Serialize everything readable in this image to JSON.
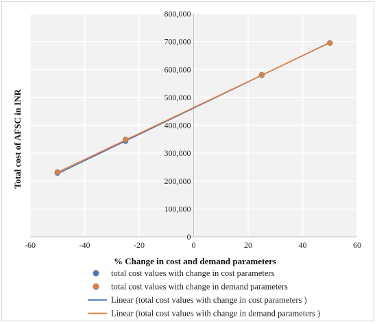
{
  "chart_data": {
    "type": "scatter",
    "title": "",
    "xlabel": "% Change in cost and demand parameters",
    "ylabel": "Total cost of AFSC in INR",
    "xlim": [
      -60,
      60
    ],
    "ylim": [
      0,
      800000
    ],
    "x_ticks": [
      -60,
      -40,
      -20,
      0,
      20,
      40,
      60
    ],
    "x_tick_labels": [
      "-60",
      "-40",
      "-20",
      "0",
      "20",
      "40",
      "60"
    ],
    "y_ticks": [
      0,
      100000,
      200000,
      300000,
      400000,
      500000,
      600000,
      700000,
      800000
    ],
    "y_tick_labels": [
      "0",
      "100,000",
      "200,000",
      "300,000",
      "400,000",
      "500,000",
      "600,000",
      "700,000",
      "800,000"
    ],
    "grid": true,
    "legend_position": "bottom",
    "series": [
      {
        "name": "total cost values with change in cost parameters",
        "kind": "points",
        "color": "#4472c4",
        "x": [
          -50,
          -25,
          25,
          50
        ],
        "y": [
          229000,
          343000,
          580000,
          695000
        ]
      },
      {
        "name": "total cost values with change in demand parameters",
        "kind": "points",
        "color": "#ed7d31",
        "x": [
          -50,
          -25,
          25,
          50
        ],
        "y": [
          232000,
          349000,
          581000,
          695000
        ]
      },
      {
        "name": "Linear (total cost values with change in cost parameters )",
        "kind": "line",
        "color": "#4472c4",
        "x": [
          -50,
          50
        ],
        "y": [
          226000,
          697000
        ]
      },
      {
        "name": "Linear (total cost values with change in demand parameters )",
        "kind": "line",
        "color": "#ed7d31",
        "x": [
          -50,
          50
        ],
        "y": [
          231000,
          696000
        ]
      }
    ]
  }
}
